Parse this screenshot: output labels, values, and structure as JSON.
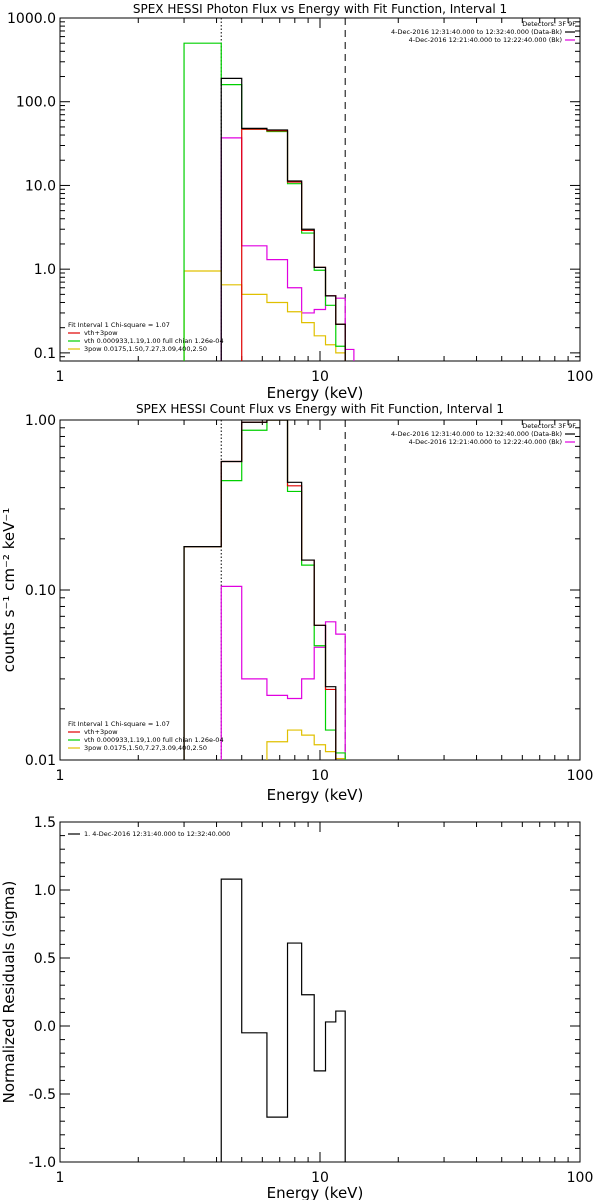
{
  "chart_data": [
    {
      "type": "line",
      "title": "SPEX HESSI Photon Flux vs Energy with Fit Function, Interval 1",
      "xlabel": "Energy (keV)",
      "ylabel": "",
      "xscale": "log",
      "yscale": "log",
      "xlim": [
        1,
        100
      ],
      "ylim": [
        0.08,
        1000
      ],
      "xticks": [
        1,
        10,
        100
      ],
      "xtick_labels": [
        "1",
        "10",
        "100"
      ],
      "yticks": [
        0.1,
        1,
        10,
        100,
        1000
      ],
      "ytick_labels": [
        "0.1",
        "1.0",
        "10.0",
        "100.0",
        "1000.0"
      ],
      "vlines": [
        {
          "x": 4.17,
          "style": "dotted"
        },
        {
          "x": 12.5,
          "style": "dashed"
        }
      ],
      "header": {
        "detectors": "Detectors: 3F 9F",
        "lines": [
          {
            "text": "4-Dec-2016 12:31:40.000 to 12:32:40.000 (Data-Bk)",
            "color": "#000000"
          },
          {
            "text": "4-Dec-2016 12:21:40.000 to 12:22:40.000 (Bk)",
            "color": "#e000e0"
          }
        ]
      },
      "legend": {
        "position": "bottom-left",
        "header": "Fit Interval 1   Chi-square = 1.07",
        "items": [
          {
            "text": "vth+3pow",
            "color": "#e00000"
          },
          {
            "text": "vth 0.000933,1.19,1.00  full chian 1.26e-04",
            "color": "#00d000"
          },
          {
            "text": "3pow 0.0175,1.50,7.27,3.09,400,2.50",
            "color": "#e0c000"
          }
        ]
      },
      "bin_edges": [
        3.0,
        4.17,
        5.0,
        6.25,
        7.5,
        8.5,
        9.5,
        10.5,
        11.5,
        12.5,
        13.5
      ],
      "series": [
        {
          "name": "Data-Bk",
          "color": "#000000",
          "values": [
            null,
            190,
            48,
            46,
            11.3,
            3.0,
            1.05,
            0.48,
            0.22,
            null
          ]
        },
        {
          "name": "vth+3pow",
          "color": "#e00000",
          "values": [
            null,
            null,
            47,
            45,
            11,
            2.9,
            1.05,
            0.48,
            0.22,
            null
          ]
        },
        {
          "name": "vth",
          "color": "#00d000",
          "values": [
            500,
            160,
            47,
            44,
            10.5,
            2.7,
            0.97,
            0.37,
            0.12,
            null
          ]
        },
        {
          "name": "3pow",
          "color": "#e0c000",
          "values": [
            0.95,
            0.65,
            0.5,
            0.4,
            0.31,
            0.23,
            0.16,
            0.125,
            0.1,
            null
          ]
        },
        {
          "name": "Bk",
          "color": "#e000e0",
          "values": [
            null,
            37,
            1.9,
            1.3,
            0.6,
            0.3,
            0.33,
            0.48,
            0.45,
            0.11
          ]
        }
      ]
    },
    {
      "type": "line",
      "title": "SPEX HESSI Count Flux vs Energy with Fit Function, Interval 1",
      "xlabel": "Energy (keV)",
      "ylabel": "counts s⁻¹ cm⁻² keV⁻¹",
      "xscale": "log",
      "yscale": "log",
      "xlim": [
        1,
        100
      ],
      "ylim": [
        0.01,
        1.0
      ],
      "xticks": [
        1,
        10,
        100
      ],
      "xtick_labels": [
        "1",
        "10",
        "100"
      ],
      "yticks": [
        0.01,
        0.1,
        1.0
      ],
      "ytick_labels": [
        "0.01",
        "0.10",
        "1.00"
      ],
      "vlines": [
        {
          "x": 4.17,
          "style": "dotted"
        },
        {
          "x": 12.5,
          "style": "dashed"
        }
      ],
      "header": {
        "detectors": "Detectors: 3F 9F",
        "lines": [
          {
            "text": "4-Dec-2016 12:31:40.000 to 12:32:40.000 (Data-Bk)",
            "color": "#000000"
          },
          {
            "text": "4-Dec-2016 12:21:40.000 to 12:22:40.000 (Bk)",
            "color": "#e000e0"
          }
        ]
      },
      "legend": {
        "position": "bottom-left",
        "header": "Fit Interval 1   Chi-square = 1.07",
        "items": [
          {
            "text": "vth+3pow",
            "color": "#e00000"
          },
          {
            "text": "vth 0.000933,1.19,1.00  full chian 1.26e-04",
            "color": "#00d000"
          },
          {
            "text": "3pow 0.0175,1.50,7.27,3.09,400,2.50",
            "color": "#e0c000"
          }
        ]
      },
      "bin_edges": [
        3.0,
        4.17,
        5.0,
        6.25,
        7.5,
        8.5,
        9.5,
        10.5,
        11.5,
        12.5,
        13.5
      ],
      "series": [
        {
          "name": "Data-Bk",
          "color": "#000000",
          "values": [
            0.18,
            0.57,
            0.97,
            1.0,
            0.43,
            0.15,
            0.062,
            0.027,
            null,
            null
          ]
        },
        {
          "name": "vth+3pow",
          "color": "#e00000",
          "values": [
            0.18,
            0.57,
            0.97,
            1.0,
            0.41,
            0.15,
            0.062,
            0.026,
            null,
            null
          ]
        },
        {
          "name": "vth",
          "color": "#00d000",
          "values": [
            0.18,
            0.44,
            0.87,
            1.0,
            0.38,
            0.14,
            0.047,
            0.015,
            0.011,
            null
          ]
        },
        {
          "name": "3pow",
          "color": "#e0c000",
          "values": [
            null,
            null,
            null,
            0.0128,
            0.015,
            0.014,
            0.0123,
            0.0112,
            0.0102,
            null
          ]
        },
        {
          "name": "Bk",
          "color": "#e000e0",
          "values": [
            null,
            0.105,
            0.03,
            0.024,
            0.023,
            0.03,
            0.046,
            0.065,
            0.055,
            null
          ]
        }
      ]
    },
    {
      "type": "line",
      "title": "",
      "xlabel": "Energy (keV)",
      "ylabel": "Normalized Residuals (sigma)",
      "xscale": "log",
      "yscale": "linear",
      "xlim": [
        1,
        100
      ],
      "ylim": [
        -1.0,
        1.5
      ],
      "xticks": [
        1,
        10,
        100
      ],
      "xtick_labels": [
        "1",
        "10",
        "100"
      ],
      "yticks": [
        -1.0,
        -0.5,
        0.0,
        0.5,
        1.0,
        1.5
      ],
      "ytick_labels": [
        "-1.0",
        "-0.5",
        "0.0",
        "0.5",
        "1.0",
        "1.5"
      ],
      "legend": {
        "position": "top-left",
        "items": [
          {
            "text": "1.  4-Dec-2016 12:31:40.000 to 12:32:40.000",
            "color": "#000000"
          }
        ]
      },
      "bin_edges": [
        4.17,
        5.0,
        6.25,
        7.5,
        8.5,
        9.5,
        10.5,
        11.5,
        12.5
      ],
      "series": [
        {
          "name": "1.  4-Dec-2016 12:31:40.000 to 12:32:40.000",
          "color": "#000000",
          "values": [
            1.08,
            -0.05,
            -0.67,
            0.61,
            0.23,
            -0.33,
            0.03,
            0.11
          ]
        }
      ]
    }
  ]
}
